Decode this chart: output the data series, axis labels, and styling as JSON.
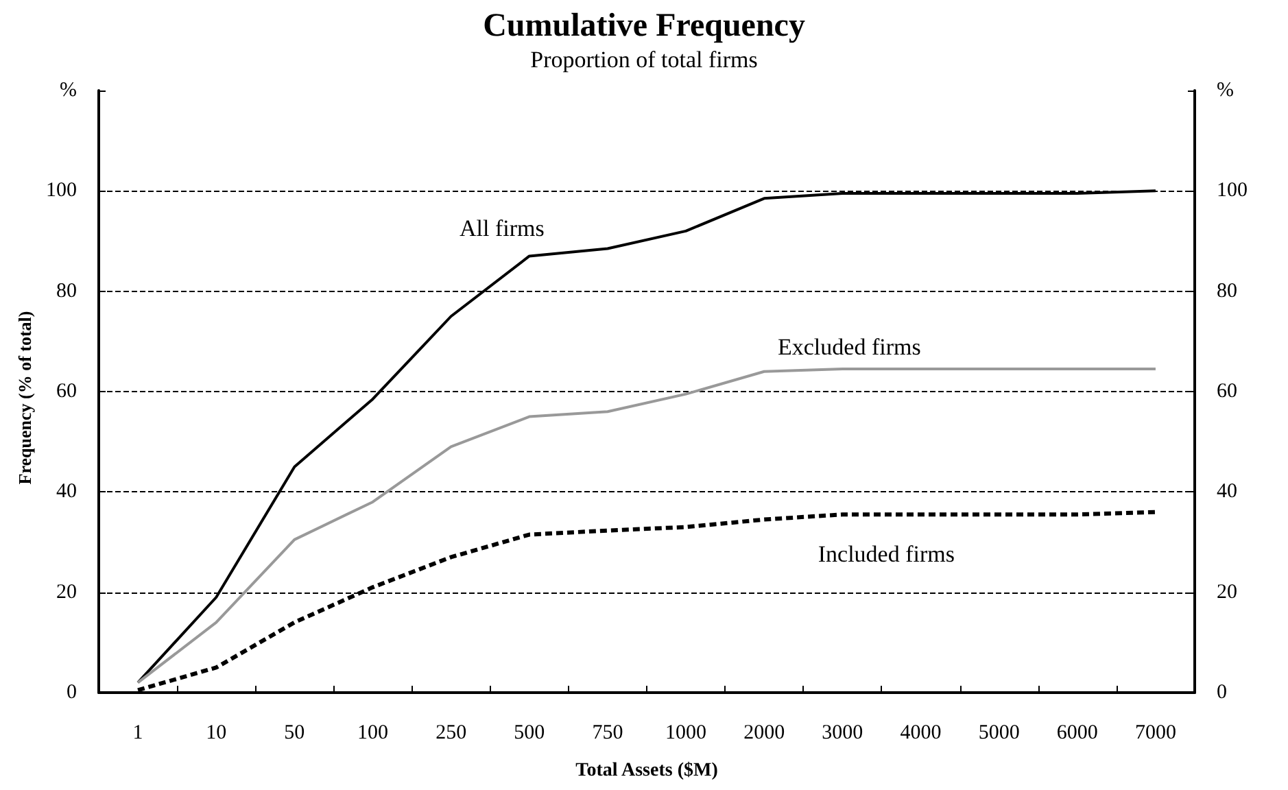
{
  "chart_data": {
    "type": "line",
    "title": "Cumulative Frequency",
    "subtitle": "Proportion of total firms",
    "xlabel": "Total Assets ($M)",
    "ylabel": "Frequency (% of total)",
    "categories": [
      "1",
      "10",
      "50",
      "100",
      "250",
      "500",
      "750",
      "1000",
      "2000",
      "3000",
      "4000",
      "5000",
      "6000",
      "7000"
    ],
    "series": [
      {
        "name": "All firms",
        "color": "#000000",
        "line_style": "solid",
        "values": [
          2,
          19,
          45,
          58.5,
          75,
          87,
          88.5,
          92,
          98.5,
          99.5,
          99.5,
          99.5,
          99.5,
          100
        ]
      },
      {
        "name": "Excluded firms",
        "color": "#999999",
        "line_style": "solid",
        "values": [
          2,
          14,
          30.5,
          38,
          49,
          55,
          56,
          59.5,
          64,
          64.5,
          64.5,
          64.5,
          64.5,
          64.5
        ]
      },
      {
        "name": "Included firms",
        "color": "#000000",
        "line_style": "dashed",
        "values": [
          0.5,
          5,
          14,
          21,
          27,
          31.5,
          32.3,
          33,
          34.5,
          35.5,
          35.5,
          35.5,
          35.5,
          36
        ]
      }
    ],
    "ylim": [
      0,
      120
    ],
    "yticks": [
      0,
      20,
      40,
      60,
      80,
      100,
      {
        "value": 120,
        "label": "%"
      }
    ],
    "y2lim": [
      0,
      120
    ],
    "y2ticks": [
      0,
      20,
      40,
      60,
      80,
      100,
      {
        "value": 120,
        "label": "%"
      }
    ],
    "grid": "y",
    "marker": "none"
  }
}
